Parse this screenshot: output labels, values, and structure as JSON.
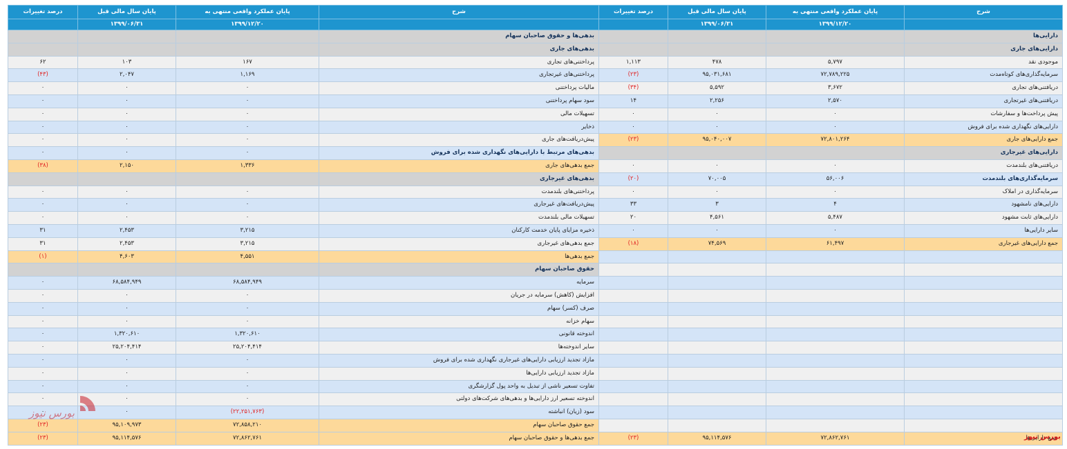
{
  "header": {
    "desc": "شرح",
    "current": "پایان عملکرد واقعی منتهی به",
    "prior": "پایان سال مالی قبل",
    "change": "درصد تغییرات",
    "current_date": "۱۳۹۹/۱۲/۲۰",
    "prior_date": "۱۳۹۹/۰۶/۳۱"
  },
  "rows": [
    {
      "r": {
        "t": "sec",
        "label": "دارایی‌ها"
      },
      "l": {
        "t": "sec",
        "label": "بدهی‌ها و حقوق صاحبان سهام"
      }
    },
    {
      "r": {
        "t": "sec",
        "label": "دارایی‌های جاری"
      },
      "l": {
        "t": "sec",
        "label": "بدهی‌های جاری"
      }
    },
    {
      "r": {
        "t": "w",
        "label": "موجودی نقد",
        "cur": "۵,۷۹۷",
        "prev": "۴۷۸",
        "chg": "۱,۱۱۳"
      },
      "l": {
        "t": "w",
        "label": "پرداختنی‌های تجاری",
        "cur": "۱۶۷",
        "prev": "۱۰۳",
        "chg": "۶۲"
      }
    },
    {
      "r": {
        "t": "b",
        "label": "سرمایه‌گذاری‌های کوتاه‌مدت",
        "cur": "۷۲,۷۸۹,۲۲۵",
        "prev": "۹۵,۰۳۱,۶۸۱",
        "chg": "(۲۳)"
      },
      "l": {
        "t": "b",
        "label": "پرداختنی‌های غیرتجاری",
        "cur": "۱,۱۶۹",
        "prev": "۲,۰۴۷",
        "chg": "(۴۳)"
      }
    },
    {
      "r": {
        "t": "w",
        "label": "دریافتنی‌های تجاری",
        "cur": "۳,۶۷۲",
        "prev": "۵,۵۹۲",
        "chg": "(۳۴)"
      },
      "l": {
        "t": "w",
        "label": "مالیات پرداختنی",
        "cur": "۰",
        "prev": "۰",
        "chg": "۰"
      }
    },
    {
      "r": {
        "t": "b",
        "label": "دریافتنی‌های غیرتجاری",
        "cur": "۲,۵۷۰",
        "prev": "۲,۲۵۶",
        "chg": "۱۴"
      },
      "l": {
        "t": "b",
        "label": "سود سهام پرداختنی",
        "cur": "۰",
        "prev": "۰",
        "chg": "۰"
      }
    },
    {
      "r": {
        "t": "w",
        "label": "پیش پرداخت‌ها و سفارشات",
        "cur": "۰",
        "prev": "۰",
        "chg": "۰"
      },
      "l": {
        "t": "w",
        "label": "تسهیلات مالی",
        "cur": "۰",
        "prev": "۰",
        "chg": "۰"
      }
    },
    {
      "r": {
        "t": "b",
        "label": "دارایی‌های نگهداری شده برای فروش",
        "cur": "۰",
        "prev": "۰",
        "chg": "۰"
      },
      "l": {
        "t": "b",
        "label": "ذخایر",
        "cur": "۰",
        "prev": "۰",
        "chg": "۰"
      }
    },
    {
      "r": {
        "t": "tot",
        "label": "جمع دارایی‌های جاری",
        "cur": "۷۲,۸۰۱,۲۶۴",
        "prev": "۹۵,۰۴۰,۰۰۷",
        "chg": "(۲۳)"
      },
      "l": {
        "t": "w",
        "label": "پیش‌دریافت‌های جاری",
        "cur": "۰",
        "prev": "۰",
        "chg": "۰"
      }
    },
    {
      "r": {
        "t": "sec",
        "label": "دارایی‌های غیرجاری"
      },
      "l": {
        "t": "b",
        "label": "بدهی‌های مرتبط با دارایی‌های نگهداری شده برای فروش",
        "cur": "۰",
        "prev": "۰",
        "chg": "۰"
      }
    },
    {
      "r": {
        "t": "w",
        "label": "دریافتنی‌های بلندمدت",
        "cur": "۰",
        "prev": "۰",
        "chg": "۰"
      },
      "l": {
        "t": "tot",
        "label": "جمع بدهی‌های جاری",
        "cur": "۱,۳۳۶",
        "prev": "۲,۱۵۰",
        "chg": "(۳۸)"
      }
    },
    {
      "r": {
        "t": "b",
        "label": "سرمایه‌گذاری‌های بلندمدت",
        "cur": "۵۶,۰۰۶",
        "prev": "۷۰,۰۰۵",
        "chg": "(۲۰)"
      },
      "l": {
        "t": "sec",
        "label": "بدهی‌های غیرجاری"
      }
    },
    {
      "r": {
        "t": "w",
        "label": "سرمایه‌گذاری در املاک",
        "cur": "۰",
        "prev": "۰",
        "chg": "۰"
      },
      "l": {
        "t": "w",
        "label": "پرداختنی‌های بلندمدت",
        "cur": "۰",
        "prev": "۰",
        "chg": "۰"
      }
    },
    {
      "r": {
        "t": "b",
        "label": "دارایی‌های نامشهود",
        "cur": "۴",
        "prev": "۳",
        "chg": "۳۳"
      },
      "l": {
        "t": "b",
        "label": "پیش‌دریافت‌های غیرجاری",
        "cur": "۰",
        "prev": "۰",
        "chg": "۰"
      }
    },
    {
      "r": {
        "t": "w",
        "label": "دارایی‌های ثابت مشهود",
        "cur": "۵,۴۸۷",
        "prev": "۴,۵۶۱",
        "chg": "۲۰"
      },
      "l": {
        "t": "w",
        "label": "تسهیلات مالی بلندمدت",
        "cur": "۰",
        "prev": "۰",
        "chg": "۰"
      }
    },
    {
      "r": {
        "t": "b",
        "label": "سایر دارایی‌ها",
        "cur": "۰",
        "prev": "۰",
        "chg": "۰"
      },
      "l": {
        "t": "b",
        "label": "ذخیره مزایای پایان خدمت کارکنان",
        "cur": "۳,۲۱۵",
        "prev": "۲,۴۵۳",
        "chg": "۳۱"
      }
    },
    {
      "r": {
        "t": "tot",
        "label": "جمع دارایی‌های غیرجاری",
        "cur": "۶۱,۴۹۷",
        "prev": "۷۴,۵۶۹",
        "chg": "(۱۸)"
      },
      "l": {
        "t": "w",
        "label": "جمع بدهی‌های غیرجاری",
        "cur": "۳,۲۱۵",
        "prev": "۲,۴۵۳",
        "chg": "۳۱"
      }
    },
    {
      "r": {
        "t": "b"
      },
      "l": {
        "t": "tot",
        "label": "جمع بدهی‌ها",
        "cur": "۴,۵۵۱",
        "prev": "۴,۶۰۳",
        "chg": "(۱)"
      }
    },
    {
      "r": {
        "t": "w"
      },
      "l": {
        "t": "sec",
        "label": "حقوق صاحبان سهام"
      }
    },
    {
      "r": {
        "t": "b"
      },
      "l": {
        "t": "b",
        "label": "سرمایه",
        "cur": "۶۸,۵۸۴,۹۴۹",
        "prev": "۶۸,۵۸۴,۹۴۹",
        "chg": "۰"
      }
    },
    {
      "r": {
        "t": "w"
      },
      "l": {
        "t": "w",
        "label": "افزایش (کاهش) سرمایه در جریان",
        "cur": "۰",
        "prev": "۰",
        "chg": "۰"
      }
    },
    {
      "r": {
        "t": "b"
      },
      "l": {
        "t": "b",
        "label": "صرف (کسر) سهام",
        "cur": "۰",
        "prev": "۰",
        "chg": "۰"
      }
    },
    {
      "r": {
        "t": "w"
      },
      "l": {
        "t": "w",
        "label": "سهام خزانه",
        "cur": "۰",
        "prev": "۰",
        "chg": "۰"
      }
    },
    {
      "r": {
        "t": "b"
      },
      "l": {
        "t": "b",
        "label": "اندوخته قانونی",
        "cur": "۱,۳۲۰,۶۱۰",
        "prev": "۱,۳۲۰,۶۱۰",
        "chg": "۰"
      }
    },
    {
      "r": {
        "t": "w"
      },
      "l": {
        "t": "w",
        "label": "سایر اندوخته‌ها",
        "cur": "۲۵,۲۰۴,۴۱۴",
        "prev": "۲۵,۲۰۴,۴۱۴",
        "chg": "۰"
      }
    },
    {
      "r": {
        "t": "b"
      },
      "l": {
        "t": "b",
        "label": "مازاد تجدید ارزیابی دارایی‌های غیرجاری نگهداری شده برای فروش",
        "cur": "۰",
        "prev": "۰",
        "chg": "۰"
      }
    },
    {
      "r": {
        "t": "w"
      },
      "l": {
        "t": "w",
        "label": "مازاد تجدید ارزیابی دارایی‌ها",
        "cur": "۰",
        "prev": "۰",
        "chg": "۰"
      }
    },
    {
      "r": {
        "t": "b"
      },
      "l": {
        "t": "b",
        "label": "تفاوت تسعیر ناشی از تبدیل به واحد پول گزارشگری",
        "cur": "۰",
        "prev": "۰",
        "chg": "۰"
      }
    },
    {
      "r": {
        "t": "w"
      },
      "l": {
        "t": "w",
        "label": "اندوخته تسعیر ارز دارایی‌ها و بدهی‌های شرکت‌های دولتی",
        "cur": "۰",
        "prev": "۰",
        "chg": "۰"
      }
    },
    {
      "r": {
        "t": "b"
      },
      "l": {
        "t": "b",
        "label": "سود (زیان) انباشته",
        "cur": "(۲۲,۲۵۱,۷۶۳)",
        "prev": "۰",
        "chg": "۰"
      }
    },
    {
      "r": {
        "t": "w"
      },
      "l": {
        "t": "tot",
        "label": "جمع حقوق صاحبان سهام",
        "cur": "۷۲,۸۵۸,۲۱۰",
        "prev": "۹۵,۱۰۹,۹۷۳",
        "chg": "(۲۳)"
      }
    },
    {
      "r": {
        "t": "tot",
        "label": "جمع دارایی‌ها",
        "cur": "۷۲,۸۶۲,۷۶۱",
        "prev": "۹۵,۱۱۴,۵۷۶",
        "chg": "(۲۳)"
      },
      "l": {
        "t": "tot",
        "label": "جمع بدهی‌ها و حقوق صاحبان سهام",
        "cur": "۷۲,۸۶۲,۷۶۱",
        "prev": "۹۵,۱۱۴,۵۷۶",
        "chg": "(۲۳)"
      }
    }
  ],
  "watermark_text": "بورس نیوز",
  "colors": {
    "header": "#1e95cf",
    "total": "#fdd99a",
    "section": "#d2d2d2",
    "stripe": "#d4e4f7",
    "negative": "#e02424"
  }
}
